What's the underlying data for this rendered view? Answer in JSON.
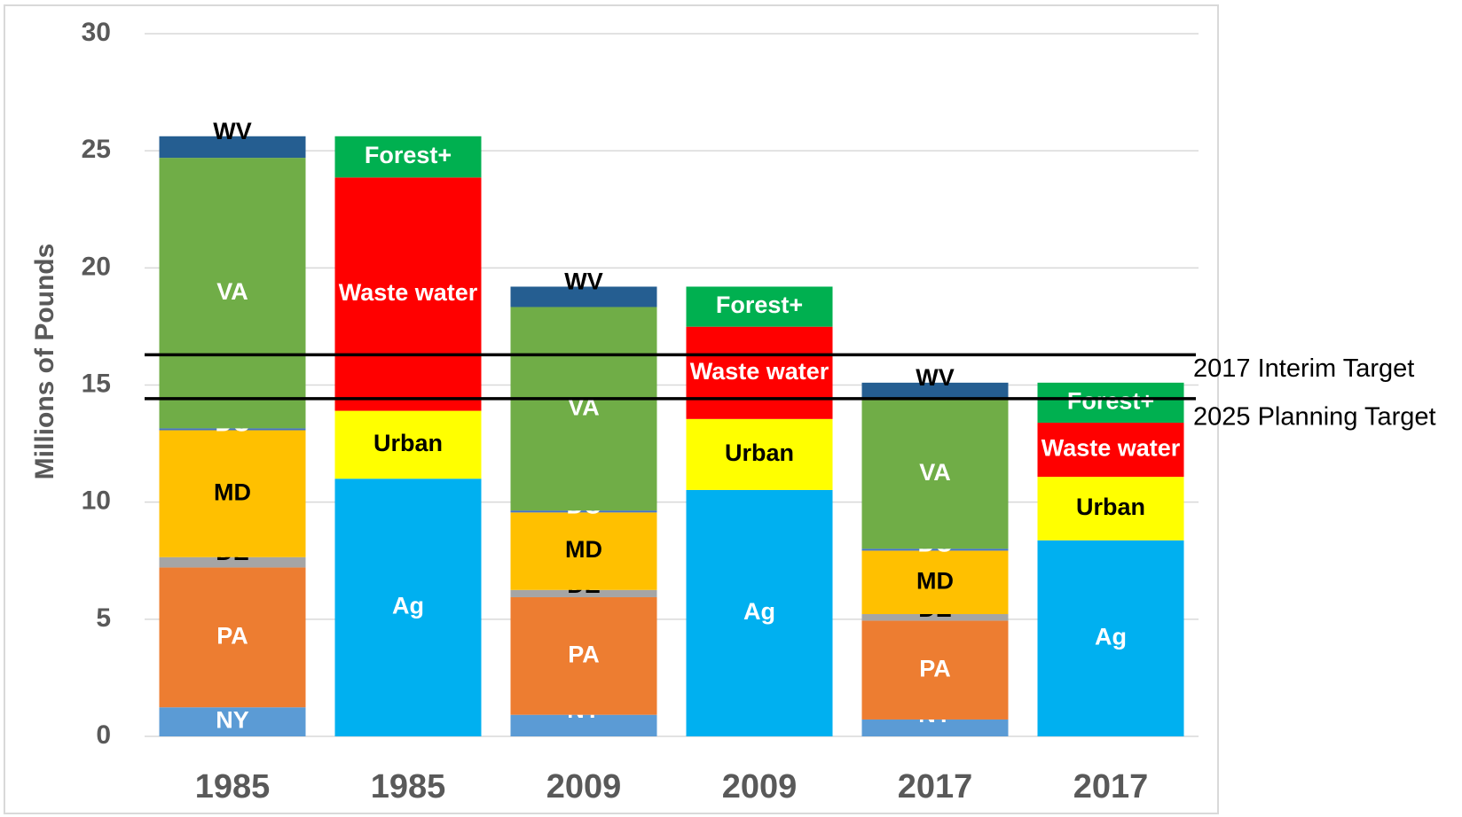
{
  "chart_data": {
    "type": "stacked_bar",
    "ylabel": "Millions of Pounds",
    "categories": [
      "1985",
      "1985",
      "2009",
      "2009",
      "2017",
      "2017"
    ],
    "ylim": [
      0,
      30
    ],
    "yticks": [
      0,
      5,
      10,
      15,
      20,
      25,
      30
    ],
    "grid": true,
    "series": [
      {
        "name": "NY",
        "color": "#5b9bd5",
        "label_color": "#ffffff",
        "values": [
          1.24,
          null,
          0.92,
          null,
          0.72,
          null
        ]
      },
      {
        "name": "PA",
        "color": "#ed7d31",
        "label_color": "#ffffff",
        "values": [
          5.97,
          null,
          5.02,
          null,
          4.22,
          null
        ]
      },
      {
        "name": "DE",
        "color": "#a5a5a5",
        "label_color": "#000000",
        "values": [
          0.44,
          null,
          0.31,
          null,
          0.28,
          null
        ]
      },
      {
        "name": "MD",
        "color": "#ffc000",
        "label_color": "#000000",
        "values": [
          5.42,
          null,
          3.31,
          null,
          2.71,
          null
        ]
      },
      {
        "name": "DC",
        "color": "#4472c4",
        "label_color": "#ffffff",
        "values": [
          0.08,
          null,
          0.08,
          null,
          0.08,
          null
        ]
      },
      {
        "name": "VA",
        "color": "#70ad47",
        "label_color": "#ffffff",
        "values": [
          11.55,
          null,
          8.69,
          null,
          6.37,
          null
        ]
      },
      {
        "name": "WV",
        "color": "#255e91",
        "label_color": "#000000",
        "values": [
          0.92,
          null,
          0.87,
          null,
          0.72,
          null
        ]
      },
      {
        "name": "Ag",
        "color": "#00b0f0",
        "label_color": "#ffffff",
        "values": [
          null,
          11.0,
          null,
          10.52,
          null,
          8.37
        ]
      },
      {
        "name": "Urban",
        "color": "#ffff00",
        "label_color": "#000000",
        "values": [
          null,
          2.9,
          null,
          3.03,
          null,
          2.71
        ]
      },
      {
        "name": "Waste water",
        "color": "#ff0000",
        "label_color": "#ffffff",
        "values": [
          null,
          9.96,
          null,
          3.94,
          null,
          2.31
        ]
      },
      {
        "name": "Forest+",
        "color": "#00b050",
        "label_color": "#ffffff",
        "values": [
          null,
          1.76,
          null,
          1.71,
          null,
          1.71
        ]
      }
    ],
    "reference_lines": [
      {
        "label": "2017 Interim Target",
        "value": 16.29
      },
      {
        "label": "2025 Planning Target",
        "value": 14.42
      }
    ]
  }
}
